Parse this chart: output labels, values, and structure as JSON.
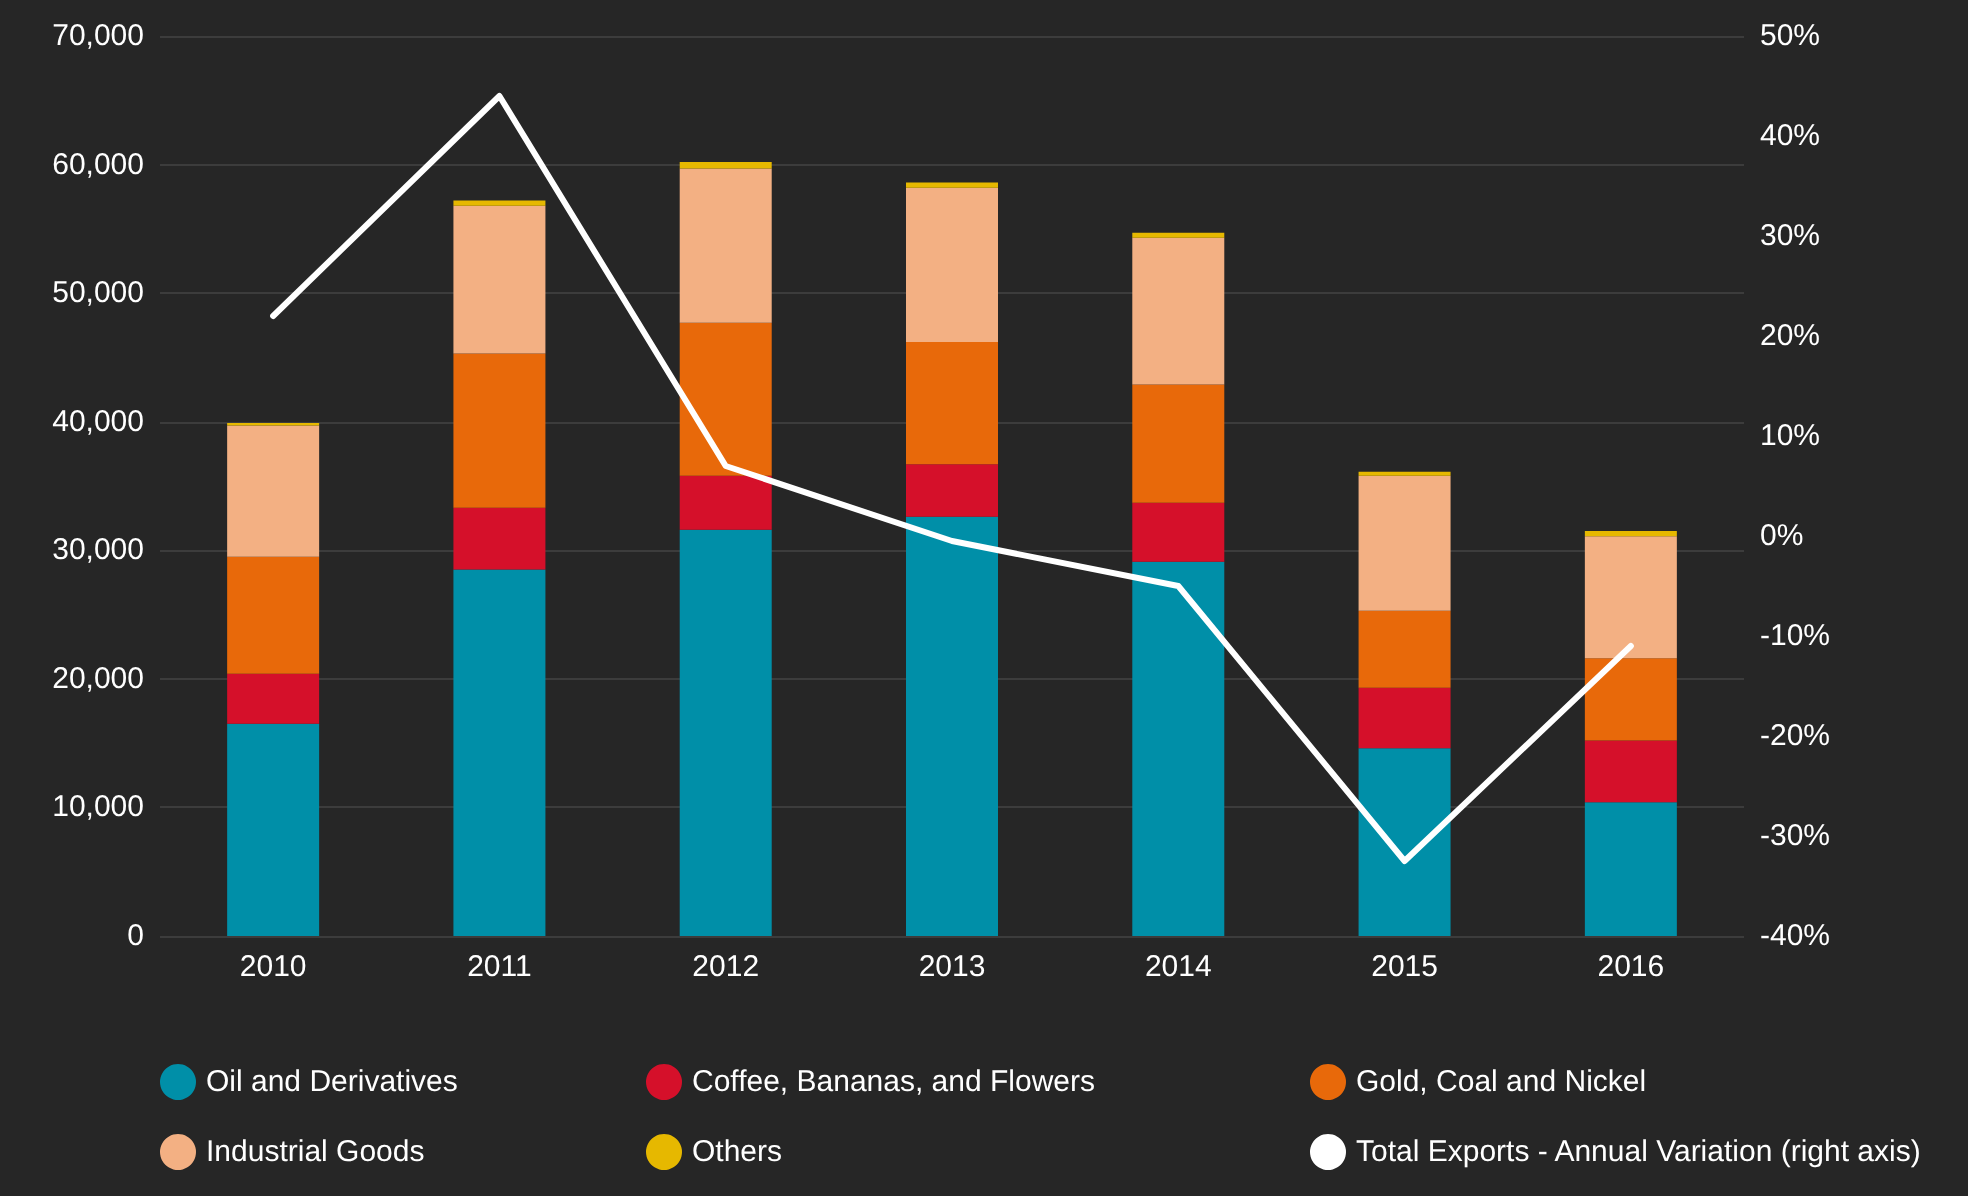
{
  "chart_data": {
    "type": "bar",
    "stacked": true,
    "categories": [
      "2010",
      "2011",
      "2012",
      "2013",
      "2014",
      "2015",
      "2016"
    ],
    "series": [
      {
        "name": "Oil and Derivatives",
        "color": "#008fa8",
        "values": [
          16500,
          28500,
          31600,
          32600,
          29100,
          14600,
          10400
        ]
      },
      {
        "name": "Coffee, Bananas, and Flowers",
        "color": "#d5102a",
        "values": [
          3900,
          4800,
          4200,
          4100,
          4600,
          4700,
          4800
        ]
      },
      {
        "name": "Gold, Coal and Nickel",
        "color": "#e8690a",
        "values": [
          9100,
          12000,
          11900,
          9500,
          9200,
          6000,
          6400
        ]
      },
      {
        "name": "Industrial Goods",
        "color": "#f3b083",
        "values": [
          10200,
          11500,
          12000,
          12000,
          11400,
          10500,
          9500
        ]
      },
      {
        "name": "Others",
        "color": "#e6b800",
        "values": [
          200,
          400,
          500,
          400,
          400,
          300,
          400
        ]
      },
      {
        "name": "Total Exports - Annual Variation (right axis)",
        "type": "line",
        "axis": "y2",
        "color": "#ffffff",
        "marker": "none",
        "line_style": "solid",
        "values": [
          22,
          44,
          7,
          -0.5,
          -5,
          -32.5,
          -11
        ]
      }
    ],
    "ylim": [
      0,
      70000
    ],
    "yticks": [
      {
        "value": 0,
        "label": "0"
      },
      {
        "value": 10000,
        "label": "10,000"
      },
      {
        "value": 20000,
        "label": "20,000"
      },
      {
        "value": 30000,
        "label": "30,000"
      },
      {
        "value": 40000,
        "label": "40,000"
      },
      {
        "value": 50000,
        "label": "50,000"
      },
      {
        "value": 60000,
        "label": "60,000"
      },
      {
        "value": 70000,
        "label": "70,000"
      }
    ],
    "y2lim": [
      -40,
      50
    ],
    "y2ticks": [
      {
        "value": -40,
        "label": "-40%"
      },
      {
        "value": -30,
        "label": "-30%"
      },
      {
        "value": -20,
        "label": "-20%"
      },
      {
        "value": -10,
        "label": "-10%"
      },
      {
        "value": 0,
        "label": "0%"
      },
      {
        "value": 10,
        "label": "10%"
      },
      {
        "value": 20,
        "label": "20%"
      },
      {
        "value": 30,
        "label": "30%"
      },
      {
        "value": 40,
        "label": "40%"
      },
      {
        "value": 50,
        "label": "50%"
      }
    ],
    "grid": "y",
    "legend": "bottom"
  }
}
